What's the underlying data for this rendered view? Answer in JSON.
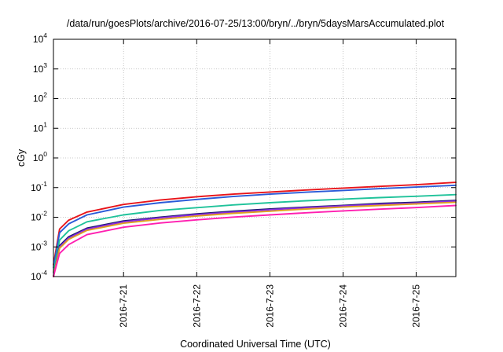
{
  "chart_data": {
    "type": "line",
    "title": "/data/run/goesPlots/archive/2016-07-25/13:00/bryn/../bryn/5daysMarsAccumulated.plot",
    "xlabel": "Coordinated Universal Time (UTC)",
    "ylabel": "cGy",
    "yscale": "log",
    "ylim": [
      0.0001,
      10000
    ],
    "xlim": [
      "2016-07-20T01:00",
      "2016-07-25T13:00"
    ],
    "grid": true,
    "legend": "none",
    "y_ticks": [
      {
        "base": "10",
        "exp": "-4",
        "value": 0.0001
      },
      {
        "base": "10",
        "exp": "-3",
        "value": 0.001
      },
      {
        "base": "10",
        "exp": "-2",
        "value": 0.01
      },
      {
        "base": "10",
        "exp": "-1",
        "value": 0.1
      },
      {
        "base": "10",
        "exp": "0",
        "value": 1
      },
      {
        "base": "10",
        "exp": "1",
        "value": 10
      },
      {
        "base": "10",
        "exp": "2",
        "value": 100
      },
      {
        "base": "10",
        "exp": "3",
        "value": 1000
      },
      {
        "base": "10",
        "exp": "4",
        "value": 10000
      }
    ],
    "x_ticks": [
      {
        "label": "2016-7-21",
        "value": "2016-07-21T00:00"
      },
      {
        "label": "2016-7-22",
        "value": "2016-07-22T00:00"
      },
      {
        "label": "2016-7-23",
        "value": "2016-07-23T00:00"
      },
      {
        "label": "2016-7-24",
        "value": "2016-07-24T00:00"
      },
      {
        "label": "2016-7-25",
        "value": "2016-07-25T00:00"
      }
    ],
    "x": [
      "2016-07-20T01:00",
      "2016-07-20T03:00",
      "2016-07-20T06:00",
      "2016-07-20T12:00",
      "2016-07-21T00:00",
      "2016-07-21T12:00",
      "2016-07-22T00:00",
      "2016-07-22T12:00",
      "2016-07-23T00:00",
      "2016-07-23T12:00",
      "2016-07-24T00:00",
      "2016-07-24T12:00",
      "2016-07-25T00:00",
      "2016-07-25T13:00"
    ],
    "series": [
      {
        "color": "#e8141a",
        "values": [
          0.00025,
          0.004,
          0.008,
          0.015,
          0.027,
          0.038,
          0.049,
          0.06,
          0.071,
          0.083,
          0.096,
          0.11,
          0.125,
          0.15
        ]
      },
      {
        "color": "#2a5ad8",
        "values": [
          0.0002,
          0.003,
          0.006,
          0.012,
          0.022,
          0.031,
          0.04,
          0.05,
          0.06,
          0.07,
          0.08,
          0.092,
          0.104,
          0.12
        ]
      },
      {
        "color": "#1fc29a",
        "values": [
          0.00014,
          0.0017,
          0.0035,
          0.007,
          0.012,
          0.017,
          0.021,
          0.026,
          0.031,
          0.036,
          0.041,
          0.046,
          0.051,
          0.058
        ]
      },
      {
        "color": "#1c1c6e",
        "values": [
          0.0001,
          0.0011,
          0.0022,
          0.0043,
          0.0075,
          0.01,
          0.013,
          0.016,
          0.019,
          0.022,
          0.025,
          0.029,
          0.032,
          0.037
        ]
      },
      {
        "color": "#8a2be2",
        "values": [
          0.0001,
          0.001,
          0.002,
          0.004,
          0.007,
          0.0095,
          0.0122,
          0.015,
          0.018,
          0.021,
          0.024,
          0.027,
          0.03,
          0.035
        ]
      },
      {
        "color": "#e0a020",
        "values": [
          0.0001,
          0.0009,
          0.0018,
          0.0036,
          0.0063,
          0.0085,
          0.011,
          0.0136,
          0.016,
          0.019,
          0.022,
          0.025,
          0.028,
          0.032
        ]
      },
      {
        "color": "#ff1fb0",
        "values": [
          0.0001,
          0.0006,
          0.0012,
          0.0026,
          0.0046,
          0.0064,
          0.0082,
          0.0101,
          0.012,
          0.0142,
          0.0164,
          0.0188,
          0.0212,
          0.025
        ]
      }
    ]
  }
}
